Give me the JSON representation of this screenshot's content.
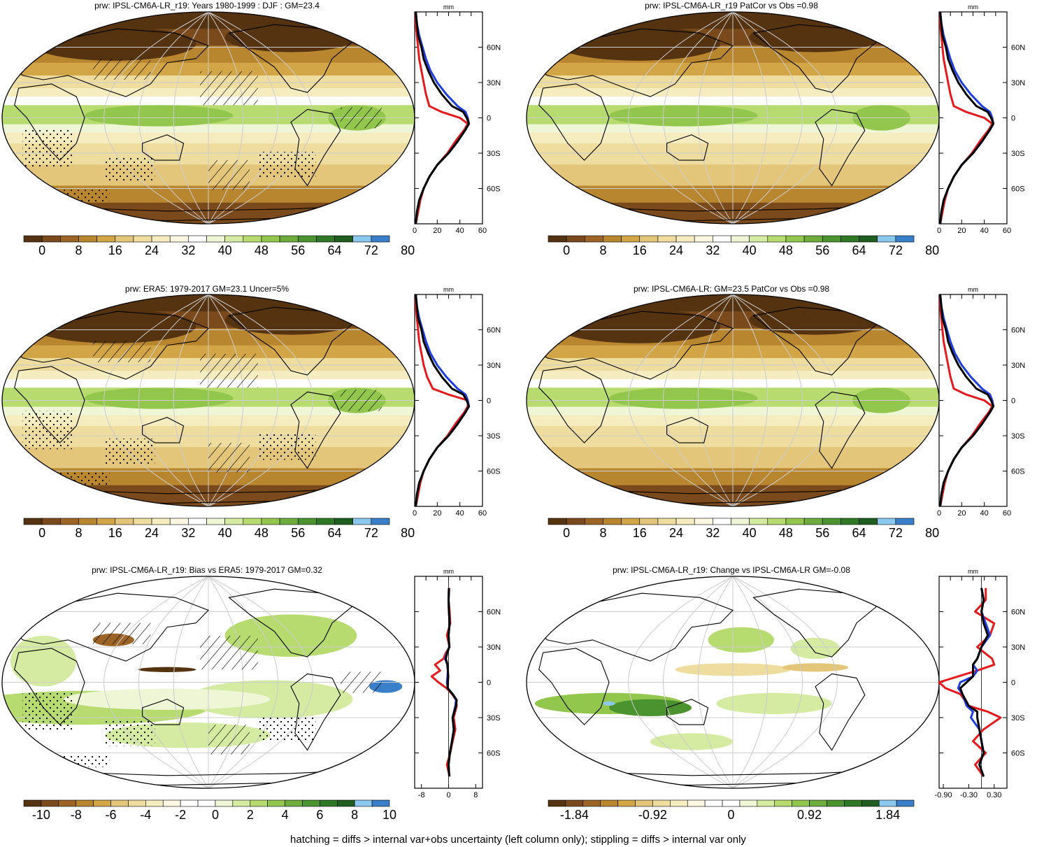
{
  "footer": "hatching = diffs > internal var+obs uncertainty (left column only); stippling = diffs > internal var only",
  "colormaps": {
    "abs": [
      "#553311",
      "#7a4a1c",
      "#9c6525",
      "#b8862f",
      "#d2a546",
      "#e3c67a",
      "#eedd9f",
      "#f5ecc0",
      "#fbf7e2",
      "#ffffff",
      "#eef6d6",
      "#d5eba1",
      "#b7db6e",
      "#93c64d",
      "#6ead3d",
      "#4a932f",
      "#2f7826",
      "#1f5e20",
      "#8ac8ee",
      "#3a7fc9"
    ],
    "div": [
      "#553311",
      "#7a4a1c",
      "#9c6525",
      "#b8862f",
      "#d2a546",
      "#e3c67a",
      "#eedd9f",
      "#f5ecc0",
      "#fbf7e2",
      "#ffffff",
      "#ffffff",
      "#eef6d6",
      "#d5eba1",
      "#b7db6e",
      "#93c64d",
      "#6ead3d",
      "#4a932f",
      "#2f7826",
      "#1f5e20",
      "#8ac8ee",
      "#3a7fc9"
    ]
  },
  "chart_data": [
    {
      "type": "heatmap",
      "title": "prw: IPSL-CM6A-LR_r19: Years 1980-1999 : DJF : GM=23.4",
      "field": "model",
      "hatch": true,
      "colorbar": {
        "map": "abs",
        "labels": [
          "0",
          "8",
          "16",
          "24",
          "32",
          "40",
          "48",
          "56",
          "64",
          "72",
          "80"
        ]
      },
      "profile": {
        "type": "line",
        "unit": "mm",
        "xlim": [
          0,
          60
        ],
        "xticks": [
          "0",
          "20",
          "40",
          "60"
        ],
        "ylim": [
          -90,
          90
        ],
        "yticks": [
          "60N",
          "30N",
          "0",
          "30S",
          "60S"
        ],
        "lat": [
          -90,
          -80,
          -70,
          -60,
          -50,
          -40,
          -30,
          -20,
          -10,
          -5,
          0,
          5,
          10,
          20,
          30,
          40,
          50,
          60,
          70,
          80,
          90
        ],
        "series": [
          {
            "color": "#e41a1c",
            "values": [
              1,
              3,
              5,
              8,
              13,
              20,
              29,
              36,
              44,
              47,
              40,
              24,
              13,
              10,
              8,
              6,
              4,
              3,
              2,
              1,
              1
            ]
          },
          {
            "color": "#1f3fdc",
            "values": [
              1,
              2,
              4,
              8,
              13,
              20,
              30,
              38,
              45,
              48,
              47,
              45,
              38,
              28,
              20,
              14,
              10,
              7,
              4,
              2,
              1
            ]
          },
          {
            "color": "#000000",
            "values": [
              1,
              2,
              4,
              8,
              13,
              20,
              30,
              38,
              45,
              48,
              46,
              43,
              33,
              24,
              17,
              12,
              8,
              6,
              3,
              2,
              1
            ]
          }
        ]
      }
    },
    {
      "type": "heatmap",
      "title": "prw: IPSL-CM6A-LR_r19 PatCor vs Obs =0.98",
      "field": "model",
      "hatch": false,
      "colorbar": {
        "map": "abs",
        "labels": [
          "0",
          "8",
          "16",
          "24",
          "32",
          "40",
          "48",
          "56",
          "64",
          "72",
          "80"
        ]
      },
      "profile": {
        "type": "line",
        "unit": "mm",
        "xlim": [
          0,
          60
        ],
        "xticks": [
          "0",
          "20",
          "40",
          "60"
        ],
        "ylim": [
          -90,
          90
        ],
        "yticks": [
          "60N",
          "30N",
          "0",
          "30S",
          "60S"
        ],
        "lat": [
          -90,
          -80,
          -70,
          -60,
          -50,
          -40,
          -30,
          -20,
          -10,
          -5,
          0,
          5,
          10,
          20,
          30,
          40,
          50,
          60,
          70,
          80,
          90
        ],
        "series": [
          {
            "color": "#e41a1c",
            "values": [
              1,
              3,
              5,
              8,
              13,
              20,
              29,
              36,
              44,
              47,
              40,
              24,
              13,
              10,
              8,
              6,
              4,
              3,
              2,
              1,
              1
            ]
          },
          {
            "color": "#1f3fdc",
            "values": [
              1,
              2,
              4,
              8,
              13,
              20,
              30,
              38,
              45,
              48,
              47,
              45,
              38,
              28,
              20,
              14,
              10,
              7,
              4,
              2,
              1
            ]
          },
          {
            "color": "#000000",
            "values": [
              1,
              2,
              4,
              8,
              13,
              20,
              30,
              38,
              45,
              48,
              46,
              43,
              33,
              24,
              17,
              12,
              8,
              6,
              3,
              2,
              1
            ]
          }
        ]
      }
    },
    {
      "type": "heatmap",
      "title": "prw: ERA5: 1979-2017 GM=23.1 Uncer=5%",
      "field": "obs",
      "hatch": true,
      "colorbar": {
        "map": "abs",
        "labels": [
          "0",
          "8",
          "16",
          "24",
          "32",
          "40",
          "48",
          "56",
          "64",
          "72",
          "80"
        ]
      },
      "profile": {
        "type": "line",
        "unit": "mm",
        "xlim": [
          0,
          60
        ],
        "xticks": [
          "0",
          "20",
          "40",
          "60"
        ],
        "ylim": [
          -90,
          90
        ],
        "yticks": [
          "60N",
          "30N",
          "0",
          "30S",
          "60S"
        ],
        "lat": [
          -90,
          -80,
          -70,
          -60,
          -50,
          -40,
          -30,
          -20,
          -10,
          -5,
          0,
          5,
          10,
          20,
          30,
          40,
          50,
          60,
          70,
          80,
          90
        ],
        "series": [
          {
            "color": "#e41a1c",
            "values": [
              1,
              3,
              5,
              8,
              13,
              20,
              29,
              36,
              44,
              47,
              47,
              30,
              16,
              11,
              8,
              6,
              4,
              3,
              2,
              1,
              1
            ]
          },
          {
            "color": "#1f3fdc",
            "values": [
              1,
              2,
              4,
              8,
              13,
              20,
              30,
              38,
              45,
              48,
              47,
              45,
              38,
              28,
              20,
              14,
              10,
              7,
              4,
              2,
              1
            ]
          },
          {
            "color": "#000000",
            "values": [
              1,
              2,
              4,
              8,
              13,
              20,
              30,
              38,
              45,
              48,
              46,
              43,
              33,
              24,
              17,
              12,
              8,
              6,
              3,
              2,
              1
            ]
          }
        ]
      }
    },
    {
      "type": "heatmap",
      "title": "prw: IPSL-CM6A-LR: GM=23.5 PatCor vs Obs =0.98",
      "field": "model",
      "hatch": false,
      "colorbar": {
        "map": "abs",
        "labels": [
          "0",
          "8",
          "16",
          "24",
          "32",
          "40",
          "48",
          "56",
          "64",
          "72",
          "80"
        ]
      },
      "profile": {
        "type": "line",
        "unit": "mm",
        "xlim": [
          0,
          60
        ],
        "xticks": [
          "0",
          "20",
          "40",
          "60"
        ],
        "ylim": [
          -90,
          90
        ],
        "yticks": [
          "60N",
          "30N",
          "0",
          "30S",
          "60S"
        ],
        "lat": [
          -90,
          -80,
          -70,
          -60,
          -50,
          -40,
          -30,
          -20,
          -10,
          -5,
          0,
          5,
          10,
          20,
          30,
          40,
          50,
          60,
          70,
          80,
          90
        ],
        "series": [
          {
            "color": "#e41a1c",
            "values": [
              1,
              3,
              5,
              8,
              13,
              20,
              29,
              36,
              44,
              47,
              40,
              24,
              13,
              10,
              8,
              6,
              4,
              3,
              2,
              1,
              1
            ]
          },
          {
            "color": "#1f3fdc",
            "values": [
              1,
              2,
              4,
              8,
              13,
              20,
              30,
              38,
              45,
              48,
              47,
              45,
              38,
              28,
              20,
              14,
              10,
              7,
              4,
              2,
              1
            ]
          },
          {
            "color": "#000000",
            "values": [
              1,
              2,
              4,
              8,
              13,
              20,
              30,
              38,
              45,
              48,
              46,
              43,
              33,
              24,
              17,
              12,
              8,
              6,
              3,
              2,
              1
            ]
          }
        ]
      }
    },
    {
      "type": "heatmap",
      "title": "prw: IPSL-CM6A-LR_r19: Bias vs ERA5: 1979-2017 GM=0.32",
      "field": "bias",
      "hatch": true,
      "colorbar": {
        "map": "div",
        "labels": [
          "-10",
          "-8",
          "-6",
          "-4",
          "-2",
          "0",
          "2",
          "4",
          "6",
          "8",
          "10"
        ]
      },
      "profile": {
        "type": "line",
        "unit": "mm",
        "xlim": [
          -10,
          10
        ],
        "xticks": [
          "-8",
          "0",
          "8"
        ],
        "ylim": [
          -90,
          90
        ],
        "yticks": [
          "60N",
          "30N",
          "0",
          "30S",
          "60S"
        ],
        "lat": [
          -80,
          -70,
          -60,
          -50,
          -40,
          -30,
          -20,
          -15,
          -10,
          -5,
          0,
          5,
          10,
          15,
          20,
          25,
          30,
          40,
          50,
          60,
          70,
          80
        ],
        "series": [
          {
            "color": "#e41a1c",
            "values": [
              0.3,
              -0.5,
              0.5,
              1.2,
              2.0,
              1.5,
              2.4,
              2.2,
              1.0,
              -0.6,
              -3.0,
              -5.0,
              -2.5,
              -4.0,
              -1.5,
              -0.8,
              0.3,
              -0.5,
              0.5,
              0.3,
              0.0,
              0.2
            ]
          },
          {
            "color": "#1f3fdc",
            "values": [
              0.2,
              0.0,
              0.4,
              1.0,
              1.5,
              1.2,
              2.0,
              2.2,
              1.2,
              -0.2,
              -0.5,
              -0.3,
              -0.2,
              -0.4,
              -1.0,
              -0.5,
              0.2,
              0.0,
              0.3,
              0.1,
              0.0,
              0.1
            ]
          },
          {
            "color": "#000000",
            "values": [
              0.2,
              0.0,
              0.4,
              1.0,
              1.6,
              1.2,
              2.2,
              2.4,
              1.2,
              -0.3,
              -0.2,
              -0.1,
              -0.2,
              -0.3,
              -0.8,
              -0.4,
              0.2,
              0.0,
              0.3,
              0.1,
              0.0,
              0.1
            ]
          }
        ]
      }
    },
    {
      "type": "heatmap",
      "title": "prw: IPSL-CM6A-LR_r19: Change vs IPSL-CM6A-LR GM=-0.08",
      "field": "change",
      "hatch": false,
      "colorbar": {
        "map": "div",
        "labels": [
          "-1.84",
          "-0.92",
          "0",
          "0.92",
          "1.84"
        ]
      },
      "profile": {
        "type": "line",
        "unit": "mm",
        "xlim": [
          -1.0,
          0.6
        ],
        "xticks": [
          "-0.90",
          "-0.30",
          "0.30"
        ],
        "ylim": [
          -90,
          90
        ],
        "yticks": [
          "60N",
          "30N",
          "0",
          "30S",
          "60S"
        ],
        "lat": [
          -80,
          -70,
          -60,
          -50,
          -40,
          -30,
          -25,
          -20,
          -10,
          -5,
          0,
          5,
          10,
          15,
          20,
          30,
          40,
          50,
          60,
          70,
          80
        ],
        "series": [
          {
            "color": "#e41a1c",
            "values": [
              0.05,
              -0.15,
              0.1,
              -0.2,
              0.05,
              0.45,
              0.15,
              -0.3,
              -0.5,
              -0.85,
              -1.0,
              -0.55,
              -0.1,
              0.3,
              0.25,
              -0.1,
              0.2,
              0.3,
              -0.15,
              0.1,
              0.1
            ]
          },
          {
            "color": "#1f3fdc",
            "values": [
              0.05,
              -0.05,
              0.05,
              0.0,
              -0.05,
              -0.25,
              -0.2,
              -0.35,
              -0.45,
              -0.55,
              -0.5,
              -0.2,
              -0.1,
              -0.2,
              -0.1,
              0.0,
              0.2,
              0.1,
              0.0,
              0.05,
              0.0
            ]
          },
          {
            "color": "#000000",
            "values": [
              0.05,
              -0.05,
              0.05,
              0.0,
              -0.05,
              -0.1,
              -0.1,
              -0.3,
              -0.45,
              -0.5,
              -0.35,
              -0.2,
              -0.2,
              -0.2,
              -0.1,
              0.0,
              0.15,
              0.05,
              0.0,
              0.05,
              0.0
            ]
          }
        ]
      }
    }
  ]
}
